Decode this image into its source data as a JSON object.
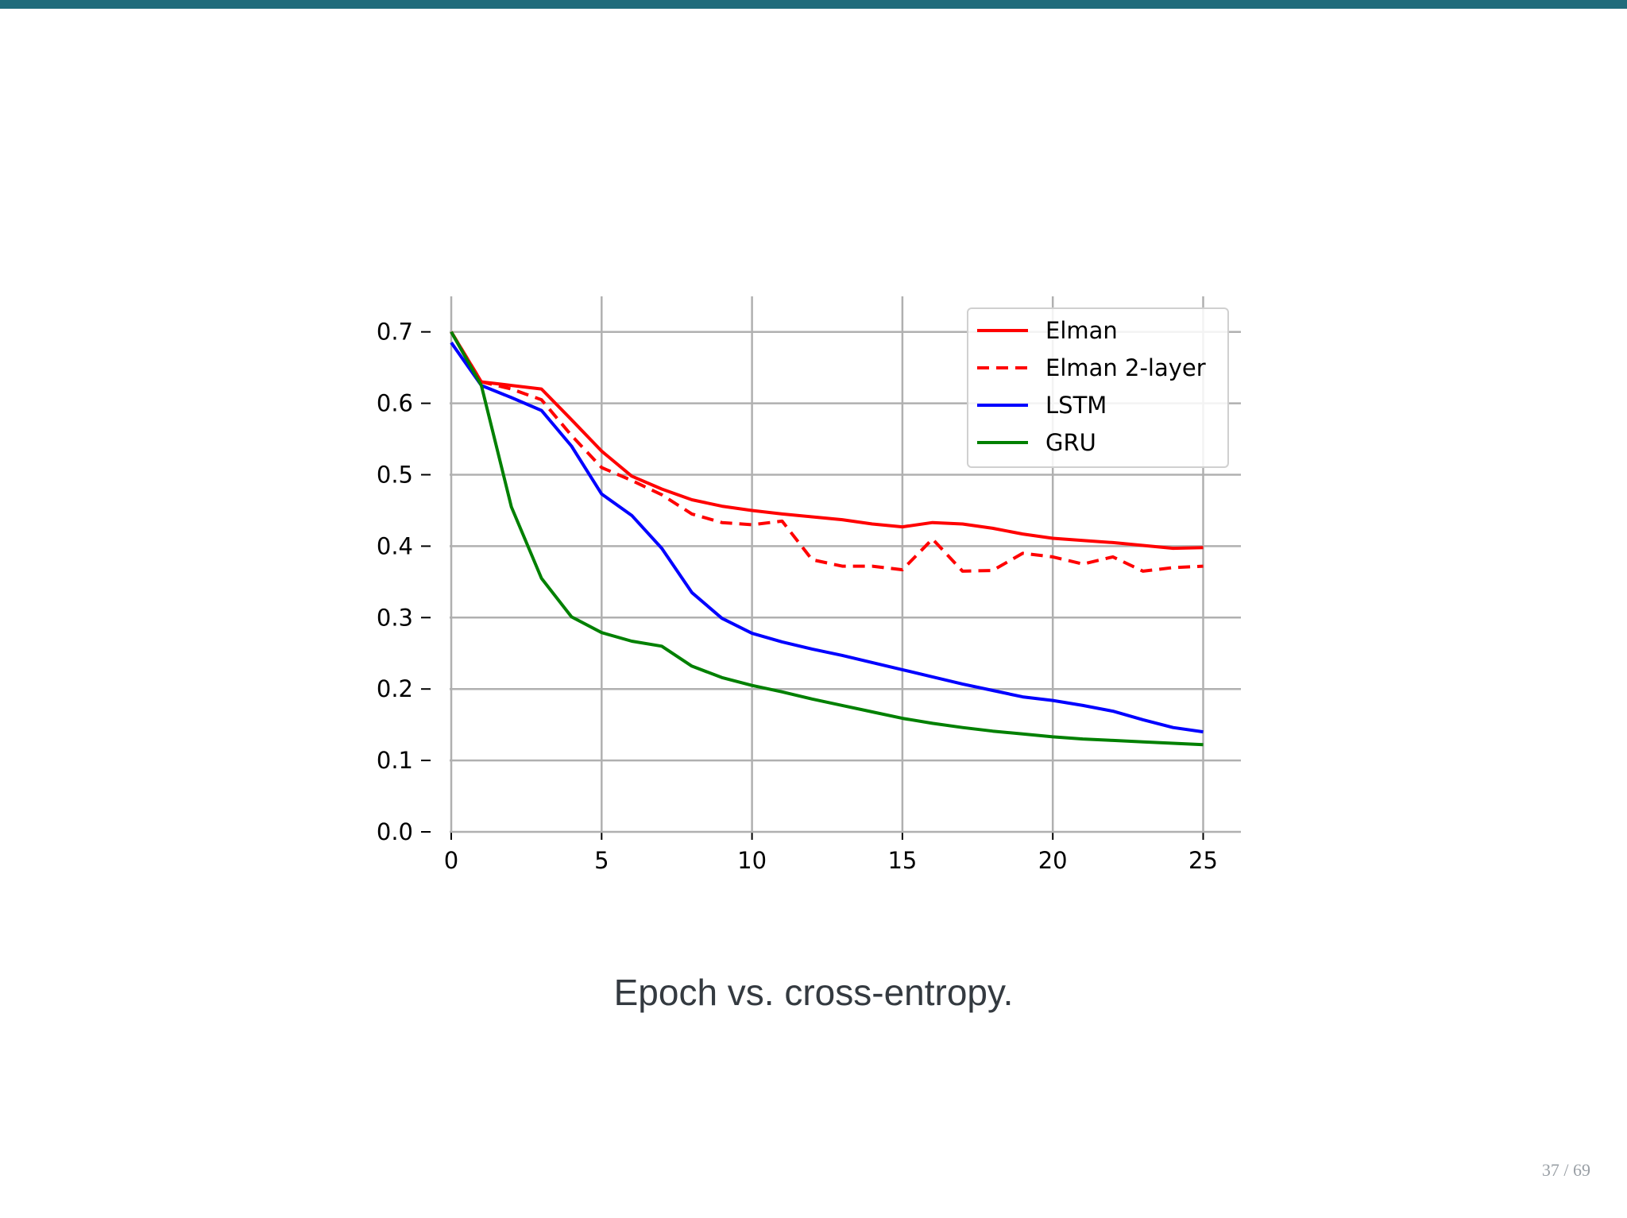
{
  "colors": {
    "accent_bar": "#1f6b7b",
    "caption_text": "#343a40",
    "page_number_text": "#9aa0a6"
  },
  "caption": "Epoch vs. cross-entropy.",
  "page_number": "37 / 69",
  "chart_data": {
    "type": "line",
    "title": "",
    "xlabel": "",
    "ylabel": "",
    "xlim": [
      0,
      26
    ],
    "ylim": [
      0,
      0.75
    ],
    "xticks": [
      0,
      5,
      10,
      15,
      20,
      25
    ],
    "yticks": [
      0.0,
      0.1,
      0.2,
      0.3,
      0.4,
      0.5,
      0.6,
      0.7
    ],
    "xtick_labels": [
      "0",
      "5",
      "10",
      "15",
      "20",
      "25"
    ],
    "ytick_labels": [
      "0.0",
      "0.1",
      "0.2",
      "0.3",
      "0.4",
      "0.5",
      "0.6",
      "0.7"
    ],
    "grid": true,
    "legend_position": "top-right",
    "x": [
      0,
      1,
      2,
      3,
      4,
      5,
      6,
      7,
      8,
      9,
      10,
      11,
      12,
      13,
      14,
      15,
      16,
      17,
      18,
      19,
      20,
      21,
      22,
      23,
      24,
      25
    ],
    "series": [
      {
        "name": "Elman",
        "color": "#ff0000",
        "style": "solid",
        "values": [
          0.7,
          0.63,
          0.625,
          0.62,
          0.577,
          0.533,
          0.498,
          0.48,
          0.465,
          0.456,
          0.45,
          0.445,
          0.441,
          0.437,
          0.431,
          0.427,
          0.433,
          0.431,
          0.425,
          0.417,
          0.411,
          0.408,
          0.405,
          0.401,
          0.397,
          0.398
        ]
      },
      {
        "name": "Elman 2-layer",
        "color": "#ff0000",
        "style": "dashed",
        "values": [
          0.7,
          0.63,
          0.62,
          0.605,
          0.555,
          0.51,
          0.492,
          0.472,
          0.445,
          0.433,
          0.43,
          0.435,
          0.381,
          0.372,
          0.372,
          0.367,
          0.41,
          0.365,
          0.366,
          0.39,
          0.385,
          0.375,
          0.385,
          0.365,
          0.37,
          0.372
        ]
      },
      {
        "name": "LSTM",
        "color": "#0000ff",
        "style": "solid",
        "values": [
          0.685,
          0.625,
          0.608,
          0.59,
          0.54,
          0.473,
          0.443,
          0.397,
          0.335,
          0.299,
          0.278,
          0.266,
          0.256,
          0.247,
          0.237,
          0.227,
          0.217,
          0.207,
          0.198,
          0.189,
          0.184,
          0.177,
          0.169,
          0.157,
          0.146,
          0.14
        ]
      },
      {
        "name": "GRU",
        "color": "#008000",
        "style": "solid",
        "values": [
          0.7,
          0.625,
          0.455,
          0.355,
          0.301,
          0.279,
          0.267,
          0.26,
          0.232,
          0.216,
          0.205,
          0.196,
          0.186,
          0.177,
          0.168,
          0.159,
          0.152,
          0.146,
          0.141,
          0.137,
          0.133,
          0.13,
          0.128,
          0.126,
          0.124,
          0.122
        ]
      }
    ]
  }
}
